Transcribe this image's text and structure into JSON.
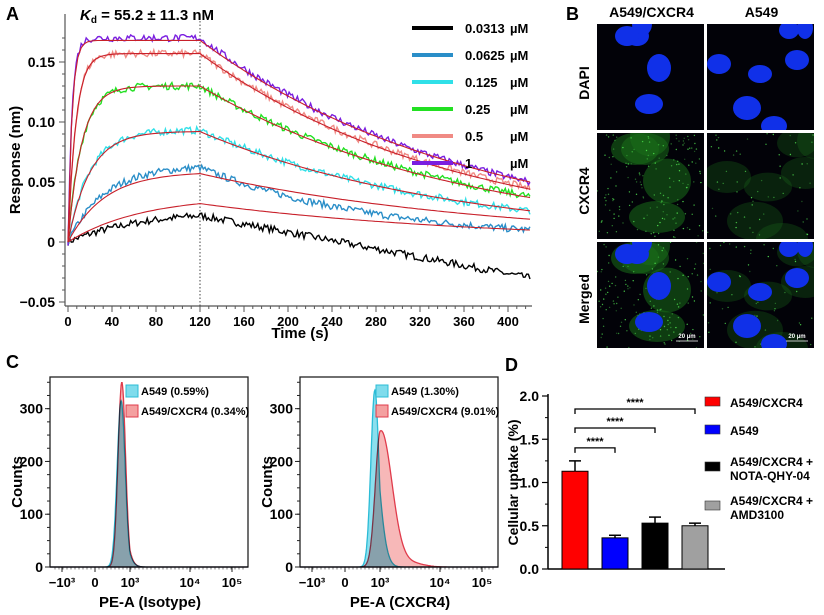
{
  "panels": {
    "A": "A",
    "B": "B",
    "C": "C",
    "D": "D"
  },
  "chart_data": [
    {
      "id": "A",
      "type": "line",
      "title": "K_d = 55.2 ± 11.3 nM",
      "title_k": "K",
      "title_sub": "d",
      "title_rest": " = 55.2 ± 11.3 nM",
      "xlabel": "Time (s)",
      "ylabel": "Response (nm)",
      "xlim": [
        -3,
        422
      ],
      "ylim": [
        -0.055,
        0.18
      ],
      "xticks": [
        0,
        40,
        80,
        120,
        160,
        200,
        240,
        280,
        320,
        360,
        400
      ],
      "yticks": [
        -0.05,
        0,
        0.05,
        0.1,
        0.15
      ],
      "ytick_labels": [
        "−0.05",
        "0",
        "0.05",
        "0.10",
        "0.15"
      ],
      "association_end": 120,
      "legend_position": "top-right",
      "fit_color": "#c8202a",
      "series": [
        {
          "name": "0.0313 µM",
          "conc": "0.0313",
          "unit": "µM",
          "color": "#000000",
          "peak_data": 0.022,
          "peak_fit": 0.032,
          "end_data": -0.03,
          "end_fit": 0.01,
          "rise": 0.003
        },
        {
          "name": "0.0625 µM",
          "conc": "0.0625",
          "unit": "µM",
          "color": "#2a8ec8",
          "peak_data": 0.062,
          "peak_fit": 0.057,
          "end_data": 0.01,
          "end_fit": 0.019,
          "rise": 0.006
        },
        {
          "name": "0.125 µM",
          "conc": "0.125",
          "unit": "µM",
          "color": "#30e0e8",
          "peak_data": 0.093,
          "peak_fit": 0.092,
          "end_data": 0.026,
          "end_fit": 0.026,
          "rise": 0.01
        },
        {
          "name": "0.25 µM",
          "conc": "0.25",
          "unit": "µM",
          "color": "#22e022",
          "peak_data": 0.13,
          "peak_fit": 0.13,
          "end_data": 0.038,
          "end_fit": 0.037,
          "rise": 0.016
        },
        {
          "name": "0.5 µM",
          "conc": "0.5",
          "unit": "µM",
          "color": "#f08a84",
          "peak_data": 0.157,
          "peak_fit": 0.157,
          "end_data": 0.045,
          "end_fit": 0.044,
          "rise": 0.028
        },
        {
          "name": "1 µM",
          "conc": "1",
          "unit": "µM",
          "color": "#7a1ee0",
          "peak_data": 0.17,
          "peak_fit": 0.168,
          "end_data": 0.05,
          "end_fit": 0.05,
          "rise": 0.055
        }
      ]
    },
    {
      "id": "C1",
      "type": "area",
      "xlabel": "PE-A (Isotype)",
      "ylabel": "Counts",
      "ylim": [
        0,
        360
      ],
      "yticks": [
        0,
        100,
        200,
        300
      ],
      "xtick_labels": [
        "−10³",
        "0",
        "10³",
        "10⁴",
        "10⁵"
      ],
      "legend_position": "top-right",
      "series": [
        {
          "name": "A549",
          "pct": "(0.59%)",
          "fill": "#7fdcec",
          "stroke": "#2bbcd6",
          "peak": 315,
          "center_log": 2.62,
          "width": 0.17
        },
        {
          "name": "A549/CXCR4",
          "pct": "(0.34%)",
          "fill": "#f4a0a0",
          "stroke": "#e03c4c",
          "peak": 350,
          "center_log": 2.65,
          "width": 0.16
        }
      ]
    },
    {
      "id": "C2",
      "type": "area",
      "xlabel": "PE-A (CXCR4)",
      "ylabel": "Counts",
      "ylim": [
        0,
        360
      ],
      "yticks": [
        0,
        100,
        200,
        300
      ],
      "xtick_labels": [
        "−10³",
        "0",
        "10³",
        "10⁴",
        "10⁵"
      ],
      "legend_position": "top-right",
      "series": [
        {
          "name": "A549",
          "pct": "(1.30%)",
          "fill": "#7fdcec",
          "stroke": "#2bbcd6",
          "peak": 335,
          "center_log": 2.78,
          "width": 0.17
        },
        {
          "name": "A549/CXCR4",
          "pct": "(9.01%)",
          "fill": "#f4a0a0",
          "stroke": "#e03c4c",
          "peak": 258,
          "center_log": 3.02,
          "width": 0.22
        }
      ]
    },
    {
      "id": "D",
      "type": "bar",
      "ylabel": "Cellular uptake (%)",
      "ylim": [
        0,
        2.0
      ],
      "yticks": [
        0.0,
        0.5,
        1.0,
        1.5,
        2.0
      ],
      "ytick_labels": [
        "0.0",
        "0.5",
        "1.0",
        "1.5",
        "2.0"
      ],
      "categories": [
        "A549/CXCR4",
        "A549",
        "A549/CXCR4 + NOTA-QHY-04",
        "A549/CXCR4 + AMD3100"
      ],
      "legend_lines": [
        [
          "A549/CXCR4"
        ],
        [
          "A549"
        ],
        [
          "A549/CXCR4 +",
          "NOTA-QHY-04"
        ],
        [
          "A549/CXCR4 +",
          "AMD3100"
        ]
      ],
      "values": [
        1.13,
        0.36,
        0.53,
        0.5
      ],
      "errors": [
        0.12,
        0.03,
        0.07,
        0.03
      ],
      "colors": [
        "#ff0000",
        "#0000ff",
        "#000000",
        "#a0a0a0"
      ],
      "legend_position": "right",
      "significance": [
        {
          "from": 0,
          "to": 1,
          "label": "****",
          "y": 1.4
        },
        {
          "from": 0,
          "to": 2,
          "label": "****",
          "y": 1.63
        },
        {
          "from": 0,
          "to": 3,
          "label": "****",
          "y": 1.85
        }
      ]
    }
  ],
  "microscopy": {
    "columns": [
      "A549/CXCR4",
      "A549"
    ],
    "rows": [
      "DAPI",
      "CXCR4",
      "Merged"
    ],
    "scale_bar": "20 µm"
  }
}
